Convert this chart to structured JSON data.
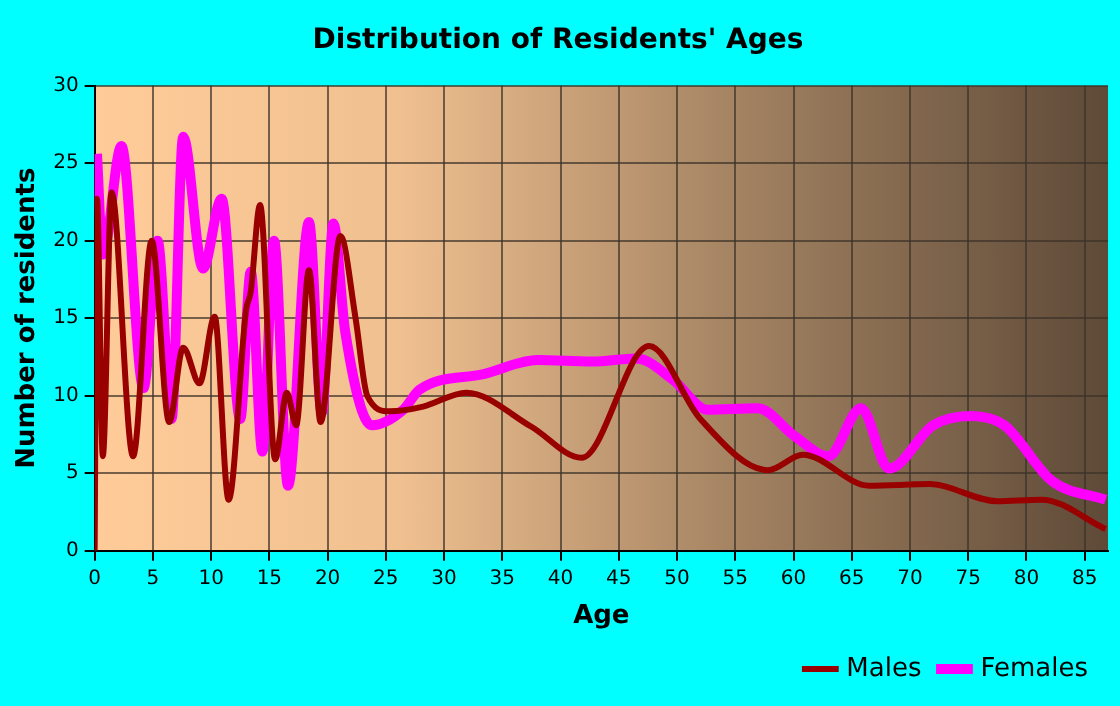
{
  "chart_data": {
    "type": "line",
    "title": "Distribution of Residents' Ages",
    "xlabel": "Age",
    "ylabel": "Number of residents",
    "xlim": [
      0,
      87
    ],
    "xticks": [
      0,
      5,
      10,
      15,
      20,
      25,
      30,
      35,
      40,
      45,
      50,
      55,
      60,
      65,
      70,
      75,
      80,
      85
    ],
    "ylim": [
      0,
      30
    ],
    "yticks": [
      0,
      5,
      10,
      15,
      20,
      25,
      30
    ],
    "grid": true,
    "legend": "bottom right",
    "marker": "none",
    "line_style": "solid",
    "series": [
      {
        "name": "Males",
        "color": "#990000",
        "x": [
          0,
          0.2,
          0.7,
          1.45,
          3.3,
          4.9,
          6.4,
          7.6,
          9.0,
          10.3,
          11.5,
          13.0,
          13.4,
          14.2,
          15.5,
          16.5,
          17.3,
          18.4,
          19.4,
          21.1,
          22.4,
          23.4,
          25.3,
          28.2,
          31.9,
          37.5,
          41.8,
          47.6,
          52.0,
          57.8,
          60.8,
          66.5,
          71.7,
          77.5,
          81.3,
          86.8
        ],
        "values": [
          0,
          22.7,
          6.1,
          23.1,
          6.1,
          20.0,
          8.3,
          13.1,
          10.8,
          15.1,
          3.3,
          15.5,
          16.7,
          22.3,
          5.9,
          10.2,
          8.1,
          18.1,
          8.3,
          20.3,
          15.0,
          10.0,
          9.0,
          9.3,
          10.2,
          8.0,
          6.0,
          13.2,
          8.5,
          5.2,
          6.2,
          4.2,
          4.3,
          3.2,
          3.3,
          1.4
        ]
      },
      {
        "name": "Females",
        "color": "#ff00ff",
        "x": [
          0.2,
          0.7,
          2.3,
          4.2,
          5.4,
          6.6,
          7.6,
          9.3,
          10.9,
          12.5,
          13.4,
          14.4,
          15.4,
          16.6,
          18.4,
          19.5,
          20.5,
          21.5,
          23.8,
          26.5,
          27.9,
          33.4,
          38.0,
          42.7,
          46.5,
          49.7,
          52.6,
          56.9,
          60.1,
          63.0,
          65.8,
          68.2,
          72.0,
          75.2,
          78.1,
          82.2,
          86.8
        ],
        "values": [
          25.6,
          19.1,
          26.1,
          10.5,
          20.0,
          8.5,
          26.7,
          18.2,
          22.7,
          8.5,
          18.0,
          6.4,
          20.0,
          4.2,
          21.2,
          8.9,
          21.1,
          14.2,
          8.1,
          9.1,
          10.4,
          11.4,
          12.3,
          12.2,
          12.4,
          11.0,
          9.1,
          9.2,
          7.4,
          6.1,
          9.2,
          5.3,
          8.1,
          8.7,
          8.1,
          4.5,
          3.3
        ]
      }
    ]
  }
}
